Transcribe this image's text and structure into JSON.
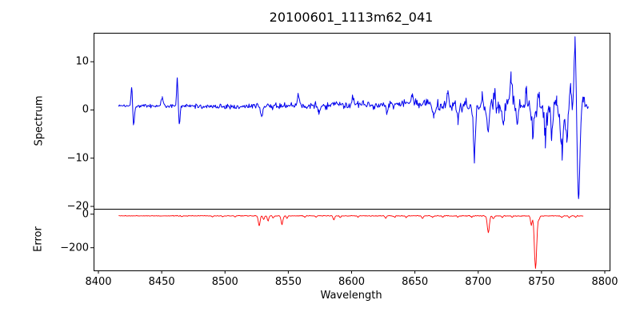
{
  "chart_data": {
    "type": "line",
    "title": "20100601_1113m62_041",
    "legend": null,
    "grid": false,
    "x_axis": {
      "label": "Wavelength",
      "lim": [
        8396.2,
        8803.8
      ],
      "ticks": [
        8400,
        8450,
        8500,
        8550,
        8600,
        8650,
        8700,
        8750,
        8800
      ],
      "tick_labels": [
        "8400",
        "8450",
        "8500",
        "8550",
        "8600",
        "8650",
        "8700",
        "8750",
        "8800"
      ]
    },
    "subplots": [
      {
        "name": "spectrum",
        "ylabel": "Spectrum",
        "line_color": "#0000ee",
        "line_width": 1.0,
        "ylim": [
          -20.5,
          16.0
        ],
        "yticks": [
          10,
          0,
          -10,
          -20
        ],
        "ytick_labels": [
          "10",
          "0",
          "−10",
          "−20"
        ],
        "x_range": [
          8416,
          8787
        ],
        "n_points": 700,
        "seed": 1337,
        "baseline_anchors": [
          [
            8416,
            0.9
          ],
          [
            8480,
            0.75
          ],
          [
            8520,
            0.7
          ],
          [
            8560,
            0.9
          ],
          [
            8590,
            1.0
          ],
          [
            8620,
            1.0
          ],
          [
            8650,
            1.35
          ],
          [
            8670,
            1.2
          ],
          [
            8690,
            0.9
          ],
          [
            8705,
            0.3
          ],
          [
            8725,
            0.8
          ],
          [
            8740,
            0.9
          ],
          [
            8750,
            0.3
          ],
          [
            8760,
            -0.2
          ],
          [
            8770,
            0.3
          ],
          [
            8780,
            0.8
          ],
          [
            8787,
            1.2
          ]
        ],
        "noise_anchors": [
          [
            8416,
            0.3
          ],
          [
            8430,
            0.45
          ],
          [
            8460,
            0.5
          ],
          [
            8490,
            0.6
          ],
          [
            8510,
            0.75
          ],
          [
            8540,
            0.85
          ],
          [
            8570,
            0.95
          ],
          [
            8600,
            0.95
          ],
          [
            8630,
            1.05
          ],
          [
            8655,
            1.2
          ],
          [
            8675,
            1.5
          ],
          [
            8695,
            1.8
          ],
          [
            8710,
            2.1
          ],
          [
            8725,
            1.9
          ],
          [
            8740,
            2.1
          ],
          [
            8752,
            2.6
          ],
          [
            8763,
            3.1
          ],
          [
            8772,
            2.6
          ],
          [
            8780,
            1.6
          ],
          [
            8787,
            1.1
          ]
        ],
        "features": [
          [
            8426.3,
            4.2,
            0.55
          ],
          [
            8427.8,
            -4.2,
            0.6
          ],
          [
            8450.5,
            1.6,
            0.9
          ],
          [
            8462.3,
            5.8,
            0.55
          ],
          [
            8463.9,
            -3.6,
            0.6
          ],
          [
            8529,
            -1.8,
            0.7
          ],
          [
            8558,
            2.0,
            0.8
          ],
          [
            8574,
            -1.8,
            0.6
          ],
          [
            8601,
            1.8,
            0.7
          ],
          [
            8628,
            -2.0,
            0.7
          ],
          [
            8648,
            2.2,
            0.8
          ],
          [
            8665,
            -2.5,
            0.7
          ],
          [
            8676,
            2.5,
            0.7
          ],
          [
            8684,
            -3.0,
            0.7
          ],
          [
            8697,
            -10.0,
            0.8
          ],
          [
            8703,
            3.0,
            0.7
          ],
          [
            8708,
            -5.5,
            0.8
          ],
          [
            8713,
            3.5,
            0.7
          ],
          [
            8720,
            -4.0,
            0.7
          ],
          [
            8726,
            6.3,
            0.8
          ],
          [
            8731,
            -3.5,
            0.7
          ],
          [
            8738,
            3.0,
            0.7
          ],
          [
            8743,
            -5.0,
            0.8
          ],
          [
            8748,
            2.5,
            0.7
          ],
          [
            8753,
            -6.0,
            0.8
          ],
          [
            8758,
            -4.5,
            0.7
          ],
          [
            8762,
            3.5,
            0.7
          ],
          [
            8766,
            -8.5,
            0.9
          ],
          [
            8770,
            -5.5,
            0.8
          ],
          [
            8773,
            4.0,
            0.7
          ],
          [
            8776.5,
            13.8,
            0.8
          ],
          [
            8779.3,
            -19.0,
            1.0
          ],
          [
            8783,
            2.0,
            0.7
          ]
        ]
      },
      {
        "name": "error",
        "ylabel": "Error",
        "line_color": "#ff0000",
        "line_width": 0.9,
        "ylim": [
          -335,
          32
        ],
        "yticks": [
          0,
          -200
        ],
        "ytick_labels": [
          "0",
          "−200"
        ],
        "x_range": [
          8416,
          8783
        ],
        "n_points": 700,
        "seed": 2024,
        "baseline_anchors": [
          [
            8416,
            -10
          ],
          [
            8783,
            -10
          ]
        ],
        "noise_anchors": [
          [
            8416,
            2.0
          ],
          [
            8500,
            2.5
          ],
          [
            8600,
            2.5
          ],
          [
            8700,
            3.0
          ],
          [
            8783,
            3.0
          ]
        ],
        "features": [
          [
            8466,
            -5,
            0.6
          ],
          [
            8490,
            -6,
            0.6
          ],
          [
            8498,
            -5,
            0.5
          ],
          [
            8508,
            -6,
            0.6
          ],
          [
            8527,
            -58,
            0.7
          ],
          [
            8530.5,
            -22,
            0.6
          ],
          [
            8534,
            -30,
            0.6
          ],
          [
            8538,
            -12,
            0.5
          ],
          [
            8545,
            -52,
            0.7
          ],
          [
            8549,
            -14,
            0.5
          ],
          [
            8563,
            -8,
            0.5
          ],
          [
            8572,
            -8,
            0.5
          ],
          [
            8586,
            -24,
            0.6
          ],
          [
            8591,
            -10,
            0.5
          ],
          [
            8605,
            -8,
            0.5
          ],
          [
            8627,
            -14,
            0.6
          ],
          [
            8634,
            -8,
            0.5
          ],
          [
            8643,
            -10,
            0.5
          ],
          [
            8656,
            -16,
            0.6
          ],
          [
            8664,
            -10,
            0.5
          ],
          [
            8672,
            -8,
            0.5
          ],
          [
            8684,
            -8,
            0.5
          ],
          [
            8695,
            -8,
            0.5
          ],
          [
            8708,
            -100,
            0.8
          ],
          [
            8712,
            -18,
            0.6
          ],
          [
            8719,
            -10,
            0.5
          ],
          [
            8727,
            -8,
            0.5
          ],
          [
            8742,
            -55,
            0.6
          ],
          [
            8745.3,
            -312,
            0.9
          ],
          [
            8748,
            -20,
            0.6
          ],
          [
            8766,
            -10,
            0.5
          ],
          [
            8772,
            -12,
            0.6
          ],
          [
            8777,
            -8,
            0.5
          ]
        ]
      }
    ],
    "colors": {
      "spectrum_line": "#0000ee",
      "error_line": "#ff0000",
      "spine": "#000000",
      "text": "#000000",
      "background": "#ffffff"
    }
  }
}
